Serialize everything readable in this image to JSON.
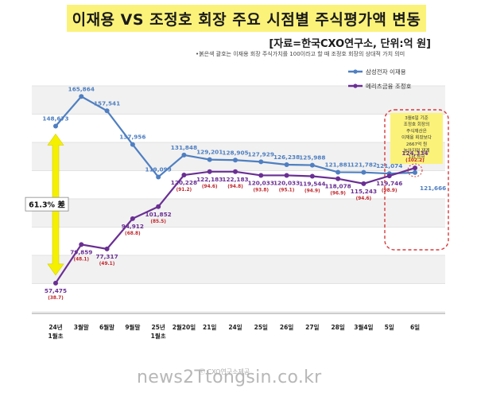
{
  "header": {
    "title": "이재용 VS 조정호 회장 주요 시점별 주식평가액 변동",
    "subtitle": "[자료=한국CXO연구소, 단위:억 원]",
    "note": "•붉은색 괄호는 이재용 회장 주식가치를 100이라고 할 때 조정호 회장의 상대적 가치 의미"
  },
  "watermark": {
    "site": "news2Ttongsin.co.kr",
    "small": "ⓒ CXO연구소제공"
  },
  "colors": {
    "lee": "#4f7fc1",
    "cho": "#6a2f93",
    "ratio": "#c0272d",
    "arrow": "#f4f000",
    "callout_bg": "#fbf27a",
    "callout_border": "#d8383a",
    "band": "#f1f1f1"
  },
  "chart_data": {
    "type": "line",
    "categories": [
      "24년\n1월초",
      "3월말",
      "6월말",
      "9월말",
      "25년\n1월초",
      "2월20일",
      "21일",
      "24일",
      "25일",
      "26일",
      "27일",
      "28일",
      "3월4일",
      "5일",
      "6일"
    ],
    "series": [
      {
        "name": "삼성전자 이재용",
        "values": [
          148673,
          165864,
          157541,
          137956,
          119099,
          131848,
          129201,
          128905,
          127929,
          126238,
          125988,
          121881,
          121782,
          121074,
          121666
        ],
        "labels": [
          "148,673",
          "165,864",
          "157,541",
          "137,956",
          "119,099",
          "131,848",
          "129,201",
          "128,905",
          "127,929",
          "126,238",
          "125,988",
          "121,881",
          "121,782",
          "121,074",
          "121,666"
        ]
      },
      {
        "name": "메리츠금융 조정호",
        "values": [
          57475,
          79859,
          77317,
          94912,
          101852,
          120228,
          122183,
          122183,
          120033,
          120033,
          119544,
          118078,
          115243,
          119746,
          124334
        ],
        "labels": [
          "57,475",
          "79,859",
          "77,317",
          "94,912",
          "101,852",
          "120,228",
          "122,183",
          "122,183",
          "120,033",
          "120,033",
          "119,544",
          "118,078",
          "115,243",
          "119,746",
          "124,334"
        ],
        "ratios": [
          "(38.7)",
          "(48.1)",
          "(49.1)",
          "(68.8)",
          "(85.5)",
          "(91.2)",
          "(94.6)",
          "(94.8)",
          "(93.8)",
          "(95.1)",
          "(94.9)",
          "(96.9)",
          "(94.6)",
          "(98.9)",
          "(102.2)"
        ]
      }
    ],
    "annotations": {
      "gap": "61.3% 差",
      "callout": "3월6일 기준 조정호 회장의 주식재산은 이재용 회장보다 2667억 원 높아지며 재계 1위 등극"
    },
    "ylim": [
      50000,
      172000
    ],
    "grid": "horizontal",
    "legend": "top-right"
  }
}
